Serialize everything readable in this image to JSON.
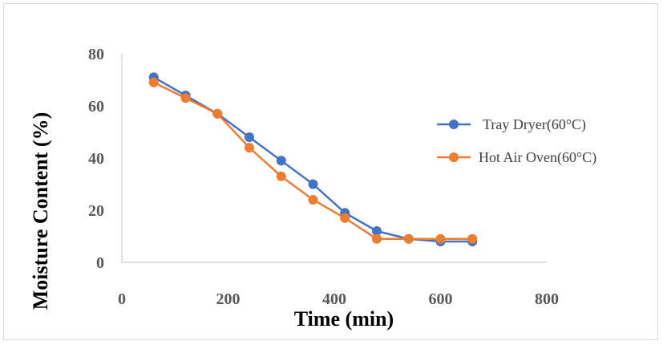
{
  "chart_data": {
    "type": "line",
    "title": "",
    "xlabel": "Time (min)",
    "ylabel": "Moisture Content (%)",
    "xlim": [
      0,
      800
    ],
    "ylim": [
      0,
      80
    ],
    "x_ticks": [
      0,
      200,
      400,
      600,
      800
    ],
    "y_ticks": [
      0,
      20,
      40,
      60,
      80
    ],
    "grid": false,
    "legend_position": "right",
    "series": [
      {
        "name": "Tray Dryer(60°C)",
        "color": "#4472c4",
        "x": [
          60,
          120,
          180,
          240,
          300,
          360,
          420,
          480,
          540,
          600,
          660
        ],
        "y": [
          71,
          64,
          57,
          48,
          39,
          30,
          19,
          12,
          9,
          8,
          8
        ]
      },
      {
        "name": "Hot Air Oven(60°C)",
        "color": "#ed7d31",
        "x": [
          60,
          120,
          180,
          240,
          300,
          360,
          420,
          480,
          540,
          600,
          660
        ],
        "y": [
          69,
          63,
          57,
          44,
          33,
          24,
          17,
          9,
          9,
          9,
          9
        ]
      }
    ]
  }
}
